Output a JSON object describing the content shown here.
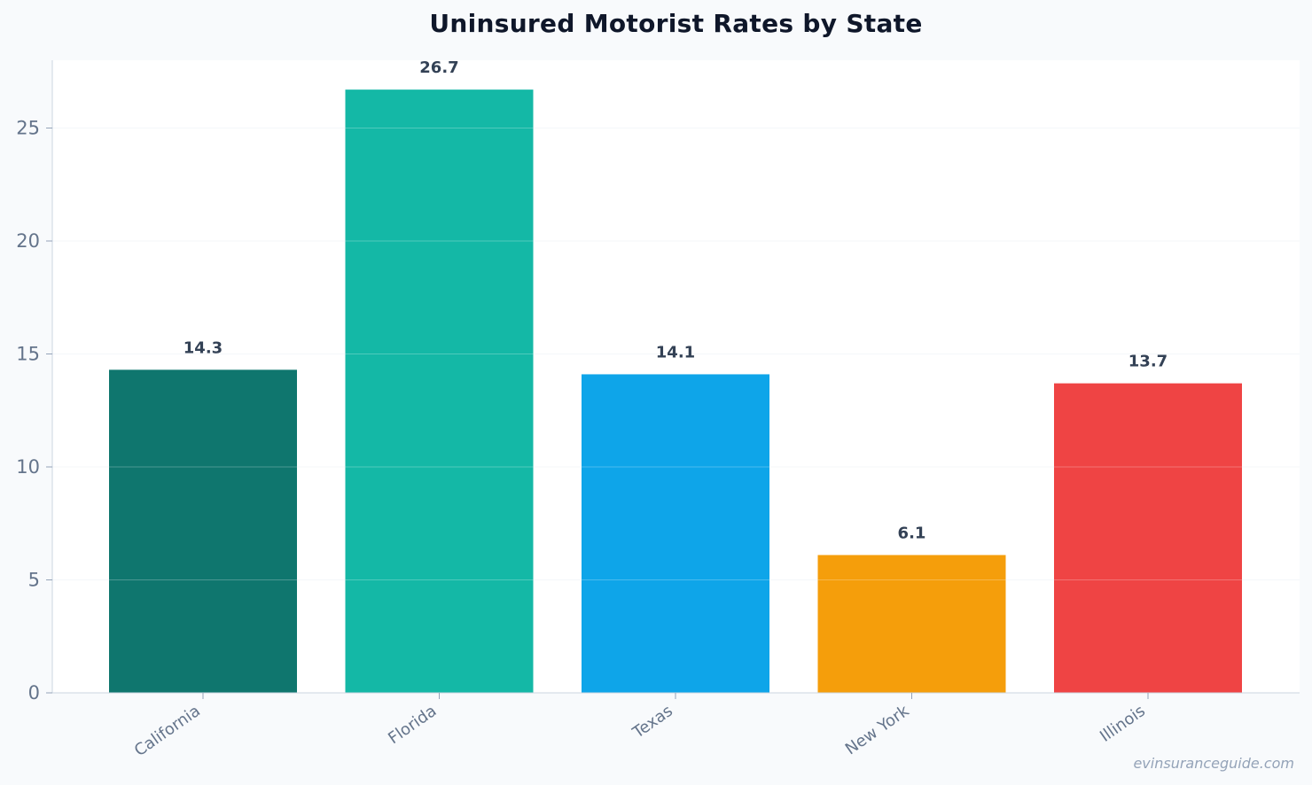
{
  "chart_data": {
    "type": "bar",
    "title": "Uninsured Motorist Rates by State",
    "xlabel": "",
    "ylabel": "",
    "categories": [
      "California",
      "Florida",
      "Texas",
      "New York",
      "Illinois"
    ],
    "values": [
      14.3,
      26.7,
      14.1,
      6.1,
      13.7
    ],
    "value_labels": [
      "14.3",
      "26.7",
      "14.1",
      "6.1",
      "13.7"
    ],
    "colors": [
      "#0f766e",
      "#14b8a6",
      "#0ea5e9",
      "#f59e0b",
      "#ef4444"
    ],
    "ylim": [
      0,
      28
    ],
    "yticks": [
      0,
      5,
      10,
      15,
      20,
      25
    ],
    "grid": true,
    "legend": "none"
  },
  "watermark": "evinsuranceguide.com"
}
